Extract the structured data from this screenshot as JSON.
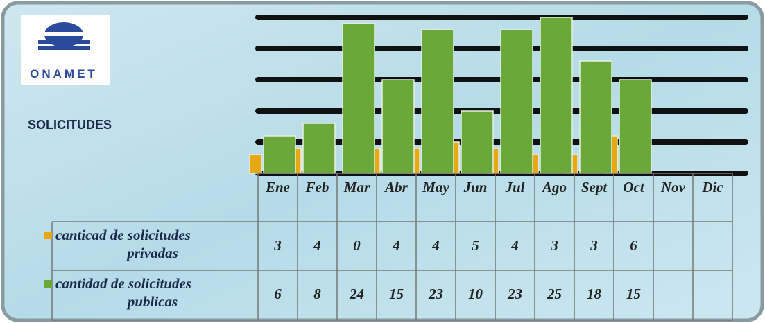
{
  "chart_data": {
    "type": "bar",
    "title": "SOLICITUDES",
    "logo": "ONAMET",
    "categories": [
      "Ene",
      "Feb",
      "Mar",
      "Abr",
      "May",
      "Jun",
      "Jul",
      "Ago",
      "Sept",
      "Oct",
      "Nov",
      "Dic"
    ],
    "series": [
      {
        "name": "canticad de solicitudes privadas",
        "color": "#e8a814",
        "values": [
          3,
          4,
          0,
          4,
          4,
          5,
          4,
          3,
          3,
          6,
          null,
          null
        ]
      },
      {
        "name": "cantidad de solicitudes publicas",
        "color": "#6aa83a",
        "values": [
          6,
          8,
          24,
          15,
          23,
          10,
          23,
          25,
          18,
          15,
          null,
          null
        ]
      }
    ],
    "ylim": [
      0,
      25
    ],
    "yticks": [
      0,
      5,
      10,
      15,
      20,
      25
    ],
    "grid": true,
    "data_table": true
  }
}
